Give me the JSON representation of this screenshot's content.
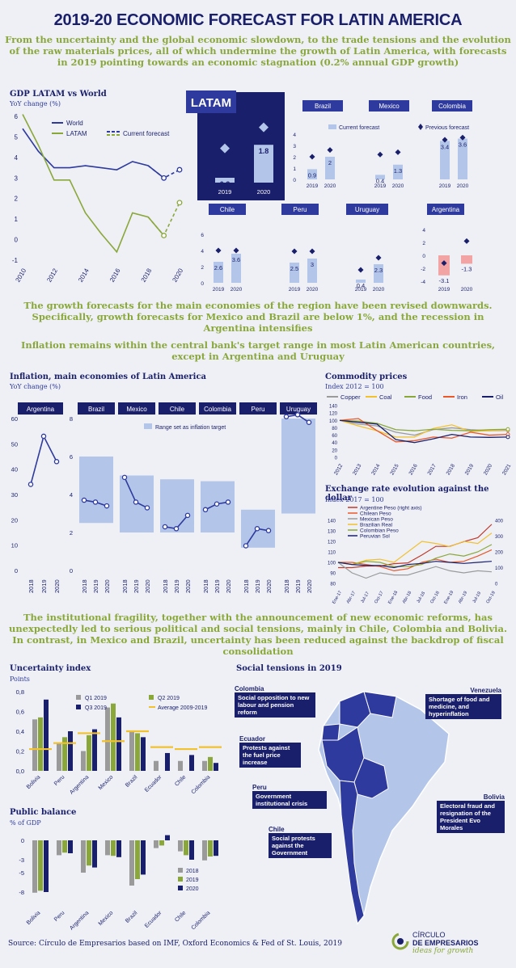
{
  "title": "2019-20 ECONOMIC FORECAST FOR LATIN AMERICA",
  "intro": "From the uncertainty and the global economic slowdown, to the trade tensions and the evolution of the raw materials prices, all of which undermine the growth of Latin America, with forecasts in 2019 pointing towards an economic stagnation (0.2% annual GDP growth)",
  "section2_text": "The growth forecasts for the main economies of the region have been revised downwards. Specifically, growth forecasts for Mexico and Brazil are below 1%, and the recession in Argentina intensifies",
  "section3_text": "Inflation remains within the central bank's target range in most Latin American countries, except in Argentina and Uruguay",
  "section4_text": "The institutional fragility, together with the announcement of new economic reforms, has unexpectedly led to serious political and social tensions, mainly in Chile, Colombia and Bolivia. In contrast, in Mexico and Brazil, uncertainty has been reduced against the backdrop of fiscal consolidation",
  "source": "Source: Círculo de Empresarios based on IMF, Oxford Economics & Fed of St. Louis, 2019",
  "logo": {
    "line1": "CÍRCULO",
    "line2": "DE EMPRESARIOS",
    "tagline": "ideas for growth"
  },
  "colors": {
    "navy": "#1a1f6b",
    "blue": "#2e3a9e",
    "olive": "#8aa83a",
    "lightblue": "#b3c5e8",
    "pink": "#f2a4a4",
    "grey": "#9a9a9a",
    "yellow": "#f2c12e"
  },
  "gdp": {
    "label": "GDP LATAM vs World",
    "unit": "YoY change (%)",
    "legend_world": "World",
    "legend_latam": "LATAM",
    "legend_forecast": "Current forecast"
  },
  "countries": {
    "legend_current": "Current forecast",
    "legend_previous": "Previous forecast",
    "latam_label": "LATAM"
  },
  "inflation": {
    "label": "Inflation, main economies of Latin America",
    "unit": "YoY change (%)",
    "legend_range": "Range set as inflation target"
  },
  "commodity": {
    "label": "Commodity prices",
    "unit": "Index 2012 = 100"
  },
  "fx": {
    "label": "Exchange rate evolution against the dollar",
    "unit": "Index 2017 = 100"
  },
  "uncertainty": {
    "label": "Uncertainty index",
    "unit": "Points"
  },
  "public_balance": {
    "label": "Public balance",
    "unit": "% of GDP"
  },
  "social": {
    "label": "Social tensions in 2019",
    "items": [
      {
        "country": "Colombia",
        "text": "Social opposition to new labour and pension reform"
      },
      {
        "country": "Ecuador",
        "text": "Protests against the fuel price increase"
      },
      {
        "country": "Peru",
        "text": "Government institutional crisis"
      },
      {
        "country": "Chile",
        "text": "Social protests against the Government"
      },
      {
        "country": "Venezuela",
        "text": "Shortage of food and medicine, and hyperinflation"
      },
      {
        "country": "Bolivia",
        "text": "Electoral fraud and resignation of the President Evo Morales"
      }
    ]
  },
  "chart_data": [
    {
      "id": "gdp",
      "type": "line",
      "title": "GDP LATAM vs World",
      "ylabel": "YoY change (%)",
      "ylim": [
        -1,
        6
      ],
      "xlim": [
        2010,
        2020
      ],
      "x_ticks": [
        "2010",
        "2012",
        "2014",
        "2016",
        "2018",
        "2020"
      ],
      "y_ticks": [
        "6",
        "5",
        "4",
        "3",
        "2",
        "1",
        "0",
        "-1"
      ],
      "series": [
        {
          "name": "World",
          "x": [
            2010,
            2011,
            2012,
            2013,
            2014,
            2015,
            2016,
            2017,
            2018,
            2019
          ],
          "values": [
            5.4,
            4.3,
            3.5,
            3.5,
            3.6,
            3.5,
            3.4,
            3.8,
            3.6,
            3.0
          ]
        },
        {
          "name": "LATAM",
          "x": [
            2010,
            2011,
            2012,
            2013,
            2014,
            2015,
            2016,
            2017,
            2018,
            2019
          ],
          "values": [
            6.1,
            4.6,
            2.9,
            2.9,
            1.3,
            0.3,
            -0.6,
            1.3,
            1.1,
            0.2
          ]
        },
        {
          "name": "Current forecast",
          "x": [
            2018,
            2019,
            2020
          ],
          "values": [
            3.6,
            3.0,
            3.4
          ]
        },
        {
          "name": "Current forecast",
          "x": [
            2018,
            2019,
            2020
          ],
          "values": [
            1.1,
            0.2,
            1.8
          ]
        }
      ]
    },
    {
      "id": "country_gdp",
      "type": "bar",
      "ylabel": "",
      "legend": [
        "Current forecast",
        "Previous forecast"
      ],
      "categories": [
        "2019",
        "2020"
      ],
      "panels": [
        {
          "name": "LATAM",
          "current": [
            0.2,
            1.8
          ],
          "previous": [
            1.4,
            2.4
          ]
        },
        {
          "name": "Brazil",
          "current": [
            0.9,
            2.0
          ],
          "previous": [
            2.0,
            2.6
          ]
        },
        {
          "name": "Mexico",
          "current": [
            0.4,
            1.3
          ],
          "previous": [
            2.2,
            2.4
          ]
        },
        {
          "name": "Colombia",
          "current": [
            3.4,
            3.6
          ],
          "previous": [
            3.5,
            3.7
          ]
        },
        {
          "name": "Chile",
          "current": [
            2.6,
            3.6
          ],
          "previous": [
            4.0,
            4.0
          ]
        },
        {
          "name": "Peru",
          "current": [
            2.5,
            3.0
          ],
          "previous": [
            3.9,
            3.9
          ]
        },
        {
          "name": "Uruguay",
          "current": [
            0.4,
            2.3
          ],
          "previous": [
            1.6,
            3.1
          ]
        },
        {
          "name": "Argentina",
          "current": [
            -3.1,
            -1.3
          ],
          "previous": [
            -1.2,
            2.2
          ]
        }
      ],
      "ylim_top": [
        0,
        4
      ],
      "ylim_bottom": [
        0,
        6
      ],
      "ylim_argentina": [
        -4,
        4
      ]
    },
    {
      "id": "inflation",
      "type": "line",
      "title": "Inflation, main economies of Latin America",
      "ylabel": "YoY change (%)",
      "x_ticks": [
        "2018",
        "2019",
        "2020"
      ],
      "argentina": {
        "ylim": [
          0,
          60
        ],
        "y_ticks": [
          "60",
          "50",
          "40",
          "30",
          "20",
          "10",
          "0"
        ],
        "values": [
          34,
          53,
          43
        ]
      },
      "others_ylim": [
        0,
        8
      ],
      "others_y_ticks": [
        "8",
        "6",
        "4",
        "2",
        "0"
      ],
      "series": [
        {
          "name": "Brazil",
          "values": [
            3.7,
            3.6,
            3.4
          ],
          "target": [
            2.5,
            6.0
          ]
        },
        {
          "name": "Mexico",
          "values": [
            4.9,
            3.6,
            3.3
          ],
          "target": [
            2.0,
            5.0
          ]
        },
        {
          "name": "Chile",
          "values": [
            2.3,
            2.2,
            2.9
          ],
          "target": [
            2.0,
            4.8
          ]
        },
        {
          "name": "Colombia",
          "values": [
            3.2,
            3.5,
            3.6
          ],
          "target": [
            2.0,
            4.7
          ]
        },
        {
          "name": "Peru",
          "values": [
            1.3,
            2.2,
            2.1
          ],
          "target": [
            1.2,
            3.2
          ]
        },
        {
          "name": "Uruguay",
          "values": [
            8.1,
            8.2,
            7.8
          ],
          "target": [
            3.0,
            8.0
          ]
        }
      ]
    },
    {
      "id": "commodity",
      "type": "line",
      "title": "Commodity prices",
      "ylabel": "Index 2012 = 100",
      "ylim": [
        0,
        140
      ],
      "y_ticks": [
        "140",
        "120",
        "100",
        "80",
        "60",
        "40",
        "20",
        "0"
      ],
      "x_ticks": [
        "2012",
        "2013",
        "2014",
        "2015",
        "2016",
        "2017",
        "2018",
        "2019",
        "2020",
        "2021"
      ],
      "x": [
        2012,
        2013,
        2014,
        2015,
        2016,
        2017,
        2018,
        2019,
        2020,
        2021
      ],
      "series": [
        {
          "name": "Copper",
          "values": [
            100,
            90,
            85,
            68,
            60,
            75,
            80,
            75,
            72,
            73
          ],
          "color": "#9a9a9a"
        },
        {
          "name": "Coal",
          "values": [
            100,
            85,
            72,
            55,
            55,
            78,
            88,
            70,
            72,
            75
          ],
          "color": "#f2c12e"
        },
        {
          "name": "Food",
          "values": [
            100,
            98,
            92,
            75,
            72,
            76,
            73,
            72,
            75,
            76
          ],
          "color": "#8aa83a"
        },
        {
          "name": "Iron",
          "values": [
            100,
            105,
            72,
            42,
            45,
            55,
            52,
            68,
            60,
            62
          ],
          "color": "#e8582a"
        },
        {
          "name": "Oil",
          "values": [
            100,
            95,
            90,
            48,
            40,
            50,
            62,
            55,
            54,
            55
          ],
          "color": "#1a1f6b"
        }
      ]
    },
    {
      "id": "fx",
      "type": "line",
      "title": "Exchange rate evolution against the dollar",
      "ylabel": "Index 2017 = 100",
      "ylim": [
        80,
        140
      ],
      "y_ticks": [
        "140",
        "130",
        "120",
        "110",
        "100",
        "90",
        "80"
      ],
      "y2_ticks": [
        "400",
        "300",
        "200",
        "100",
        "0"
      ],
      "y2_label": "Argentine Peso (right axis)",
      "x_ticks": [
        "Ene-17",
        "Abr-17",
        "Jul-17",
        "Oct-17",
        "Ene-18",
        "Abr-18",
        "Jul-18",
        "Oct-18",
        "Ene-19",
        "Abr-19",
        "Jul-19",
        "Oct-19"
      ],
      "series": [
        {
          "name": "Argentine Peso (right axis)",
          "values": [
            100,
            100,
            110,
            110,
            125,
            130,
            180,
            235,
            235,
            265,
            290,
            375
          ],
          "color": "#c0392b"
        },
        {
          "name": "Chilean Peso",
          "values": [
            100,
            100,
            98,
            96,
            92,
            94,
            100,
            103,
            100,
            101,
            106,
            112
          ],
          "color": "#e8582a"
        },
        {
          "name": "Mexican Peso",
          "values": [
            100,
            90,
            85,
            90,
            88,
            88,
            92,
            96,
            92,
            90,
            92,
            91
          ],
          "color": "#9a9a9a"
        },
        {
          "name": "Brazilian Real",
          "values": [
            100,
            98,
            102,
            103,
            100,
            110,
            120,
            118,
            115,
            120,
            118,
            128
          ],
          "color": "#f2c12e"
        },
        {
          "name": "Colombian Peso",
          "values": [
            100,
            98,
            101,
            100,
            96,
            96,
            98,
            104,
            108,
            106,
            110,
            117
          ],
          "color": "#8aa83a"
        },
        {
          "name": "Peruvian Sol",
          "values": [
            100,
            98,
            97,
            97,
            95,
            98,
            99,
            101,
            100,
            99,
            100,
            101
          ],
          "color": "#1a1f6b"
        }
      ]
    },
    {
      "id": "uncertainty",
      "type": "bar",
      "title": "Uncertainty index",
      "ylabel": "Points",
      "ylim": [
        0,
        0.8
      ],
      "y_ticks": [
        "0,8",
        "0,6",
        "0,4",
        "0,2",
        "0,0"
      ],
      "categories": [
        "Bolivia",
        "Peru",
        "Argentina",
        "Mexico",
        "Brazil",
        "Ecuador",
        "Chile",
        "Colombia"
      ],
      "series": [
        {
          "name": "Q1 2019",
          "values": [
            0.52,
            0.28,
            0.2,
            0.64,
            0.4,
            0.1,
            0.1,
            0.1
          ],
          "color": "#9a9a9a"
        },
        {
          "name": "Q2 2019",
          "values": [
            0.54,
            0.34,
            0.36,
            0.68,
            0.38,
            0.0,
            0.0,
            0.14
          ],
          "color": "#8aa83a"
        },
        {
          "name": "Q3 2019",
          "values": [
            0.72,
            0.4,
            0.42,
            0.54,
            0.34,
            0.18,
            0.16,
            0.08
          ],
          "color": "#1a1f6b"
        },
        {
          "name": "Average 2009-2019",
          "type": "marker",
          "values": [
            0.22,
            0.28,
            0.38,
            0.3,
            0.4,
            0.24,
            0.22,
            0.24
          ],
          "color": "#f2c12e"
        }
      ]
    },
    {
      "id": "public_balance",
      "type": "bar",
      "title": "Public balance",
      "ylabel": "% of GDP",
      "ylim": [
        -10,
        1
      ],
      "y_ticks": [
        "0",
        "-3",
        "-5",
        "-8"
      ],
      "categories": [
        "Bolivia",
        "Peru",
        "Argentina",
        "Mexico",
        "Brazil",
        "Ecuador",
        "Chile",
        "Colombia"
      ],
      "series": [
        {
          "name": "2018",
          "values": [
            -8.1,
            -2.3,
            -5.0,
            -2.3,
            -7.0,
            -1.2,
            -1.7,
            -3.1
          ],
          "color": "#9a9a9a"
        },
        {
          "name": "2019",
          "values": [
            -7.8,
            -1.9,
            -3.9,
            -2.4,
            -6.0,
            -0.8,
            -2.3,
            -2.5
          ],
          "color": "#8aa83a"
        },
        {
          "name": "2020",
          "values": [
            -8.0,
            -2.0,
            -4.2,
            -2.6,
            -5.3,
            0.8,
            -3.0,
            -2.4
          ],
          "color": "#1a1f6b"
        }
      ]
    }
  ]
}
